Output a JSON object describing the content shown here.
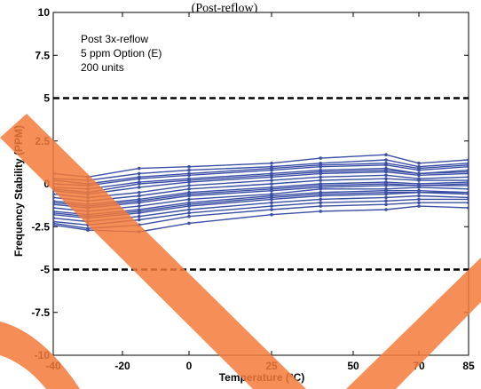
{
  "chart_data": {
    "type": "line",
    "title": "(Post-reflow)",
    "xlabel": "Temperature (°C)",
    "ylabel": "Frequency Stability (PPM)",
    "annotations": [
      "Post 3x-reflow",
      "5 ppm Option (E)",
      "200 units"
    ],
    "x": [
      -40,
      -30,
      -15,
      0,
      25,
      40,
      60,
      70,
      85
    ],
    "x_tick_labels": [
      "-40",
      "-20",
      "0",
      "25",
      "50",
      "70",
      "85"
    ],
    "y_tick_labels": [
      "10",
      "7.5",
      "5",
      "2.5",
      "0",
      "-2.5",
      "-5",
      "-7.5",
      "-10"
    ],
    "ylim": [
      -10,
      10
    ],
    "limits": [
      5,
      -5
    ],
    "series_color": "#3b4fa5",
    "limit_color": "#000000",
    "overlay_color": "#f47a3a",
    "series": [
      {
        "values": [
          0.6,
          0.4,
          0.9,
          1.0,
          1.2,
          1.5,
          1.7,
          1.2,
          1.4
        ]
      },
      {
        "values": [
          0.3,
          0.2,
          0.6,
          0.8,
          1.0,
          1.2,
          1.4,
          1.0,
          1.2
        ]
      },
      {
        "values": [
          0.0,
          -0.1,
          0.3,
          0.5,
          0.8,
          1.0,
          1.1,
          0.8,
          1.0
        ]
      },
      {
        "values": [
          -0.2,
          -0.3,
          0.1,
          0.3,
          0.6,
          0.8,
          0.9,
          0.6,
          0.8
        ]
      },
      {
        "values": [
          -0.4,
          -0.6,
          -0.2,
          0.1,
          0.4,
          0.6,
          0.7,
          0.5,
          0.6
        ]
      },
      {
        "values": [
          -0.6,
          -0.8,
          -0.5,
          -0.1,
          0.2,
          0.4,
          0.5,
          0.3,
          0.4
        ]
      },
      {
        "values": [
          -0.8,
          -1.0,
          -0.7,
          -0.3,
          0.0,
          0.2,
          0.3,
          0.2,
          0.2
        ]
      },
      {
        "values": [
          -1.0,
          -1.2,
          -0.9,
          -0.5,
          -0.2,
          0.0,
          0.1,
          0.0,
          0.1
        ]
      },
      {
        "values": [
          -1.2,
          -1.4,
          -1.1,
          -0.7,
          -0.4,
          -0.2,
          -0.1,
          -0.1,
          -0.1
        ]
      },
      {
        "values": [
          -1.4,
          -1.6,
          -1.3,
          -0.9,
          -0.6,
          -0.3,
          -0.3,
          -0.2,
          -0.3
        ]
      },
      {
        "values": [
          -1.6,
          -1.8,
          -1.5,
          -1.1,
          -0.7,
          -0.5,
          -0.4,
          -0.4,
          -0.5
        ]
      },
      {
        "values": [
          -1.8,
          -2.0,
          -1.7,
          -1.3,
          -0.9,
          -0.7,
          -0.6,
          -0.5,
          -0.6
        ]
      },
      {
        "values": [
          -2.0,
          -2.2,
          -1.9,
          -1.5,
          -1.1,
          -0.9,
          -0.8,
          -0.7,
          -0.8
        ]
      },
      {
        "values": [
          -2.2,
          -2.4,
          -2.1,
          -1.7,
          -1.3,
          -1.1,
          -1.0,
          -0.9,
          -0.9
        ]
      },
      {
        "values": [
          -2.3,
          -2.6,
          -2.4,
          -1.9,
          -1.5,
          -1.3,
          -1.2,
          -1.1,
          -1.1
        ]
      },
      {
        "values": [
          -2.4,
          -2.7,
          -2.8,
          -2.3,
          -1.8,
          -1.6,
          -1.5,
          -1.3,
          -1.4
        ]
      },
      {
        "values": [
          0.2,
          0.0,
          0.4,
          0.6,
          0.9,
          1.1,
          1.2,
          0.9,
          1.1
        ]
      },
      {
        "values": [
          -1.1,
          -1.3,
          -1.0,
          -0.6,
          -0.3,
          -0.1,
          0.0,
          -0.1,
          0.0
        ]
      },
      {
        "values": [
          -1.7,
          -1.9,
          -1.6,
          -1.2,
          -0.8,
          -0.6,
          -0.5,
          -0.5,
          -0.5
        ]
      },
      {
        "values": [
          -0.3,
          -0.5,
          0.0,
          0.2,
          0.5,
          0.7,
          0.8,
          0.6,
          0.7
        ]
      }
    ]
  }
}
